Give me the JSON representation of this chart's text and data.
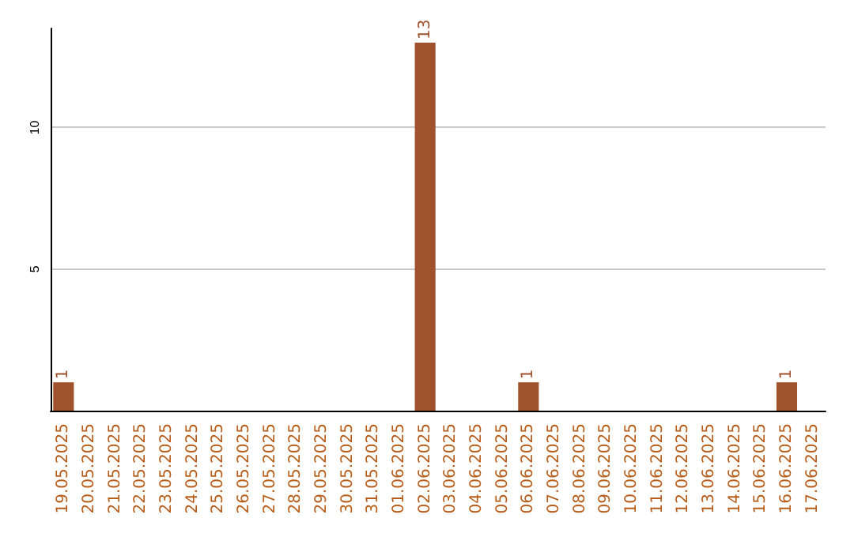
{
  "chart_data": {
    "type": "bar",
    "categories": [
      "19.05.2025",
      "20.05.2025",
      "21.05.2025",
      "22.05.2025",
      "23.05.2025",
      "24.05.2025",
      "25.05.2025",
      "26.05.2025",
      "27.05.2025",
      "28.05.2025",
      "29.05.2025",
      "30.05.2025",
      "31.05.2025",
      "01.06.2025",
      "02.06.2025",
      "03.06.2025",
      "04.06.2025",
      "05.06.2025",
      "06.06.2025",
      "07.06.2025",
      "08.06.2025",
      "09.06.2025",
      "10.06.2025",
      "11.06.2025",
      "12.06.2025",
      "13.06.2025",
      "14.06.2025",
      "15.06.2025",
      "16.06.2025",
      "17.06.2025"
    ],
    "values": [
      1,
      0,
      0,
      0,
      0,
      0,
      0,
      0,
      0,
      0,
      0,
      0,
      0,
      0,
      13,
      0,
      0,
      0,
      1,
      0,
      0,
      0,
      0,
      0,
      0,
      0,
      0,
      0,
      1,
      0
    ],
    "value_labels": [
      "1",
      null,
      null,
      null,
      null,
      null,
      null,
      null,
      null,
      null,
      null,
      null,
      null,
      null,
      "13",
      null,
      null,
      null,
      "1",
      null,
      null,
      null,
      null,
      null,
      null,
      null,
      null,
      null,
      "1",
      null
    ],
    "color": "#a0522d",
    "ylim": [
      0,
      13.5
    ],
    "yticks": [
      5,
      10
    ],
    "grid": "y"
  }
}
